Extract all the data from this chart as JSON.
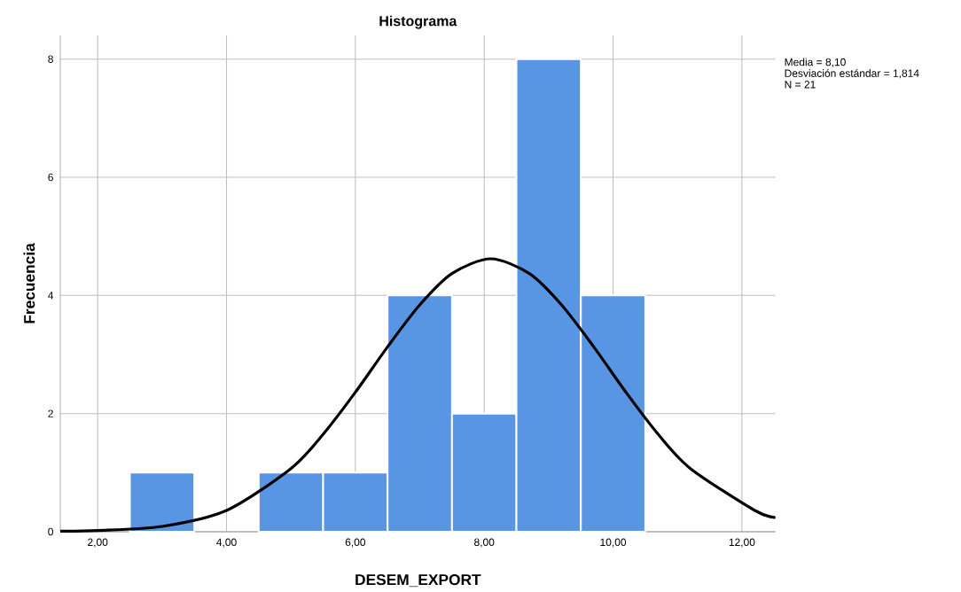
{
  "chart_data": {
    "type": "histogram",
    "title": "Histograma",
    "xlabel": "DESEM_EXPORT",
    "ylabel": "Frecuencia",
    "bins": [
      2.5,
      3.5,
      4.5,
      5.5,
      6.5,
      7.5,
      8.5,
      9.5,
      10.5
    ],
    "values": [
      1,
      0,
      1,
      1,
      4,
      2,
      8,
      4
    ],
    "color": "#5895e3",
    "series": [
      {
        "type": "line",
        "color": "#000000",
        "x": [
          1.42,
          2,
          3,
          4,
          5,
          5.5,
          6,
          6.5,
          7,
          7.5,
          8.1,
          8.7,
          9.2,
          9.7,
          10.2,
          10.7,
          11.2,
          12.2,
          12.52
        ],
        "values": [
          0.01,
          0.02,
          0.09,
          0.36,
          1.07,
          1.65,
          2.36,
          3.13,
          3.84,
          4.37,
          4.62,
          4.37,
          3.84,
          3.13,
          2.36,
          1.65,
          1.07,
          0.36,
          0.24
        ]
      }
    ],
    "xlim": [
      1.42,
      12.52
    ],
    "ylim": [
      0,
      8.4
    ],
    "xticks": [
      {
        "value": 2,
        "label": "2,00"
      },
      {
        "value": 4,
        "label": "4,00"
      },
      {
        "value": 6,
        "label": "6,00"
      },
      {
        "value": 8,
        "label": "8,00"
      },
      {
        "value": 10,
        "label": "10,00"
      },
      {
        "value": 12,
        "label": "12,00"
      }
    ],
    "yticks": [
      0,
      2,
      4,
      6,
      8
    ],
    "grid": true,
    "annotations": [
      "Media = 8,10",
      "Desviación estándar = 1,814",
      "N = 21"
    ]
  }
}
